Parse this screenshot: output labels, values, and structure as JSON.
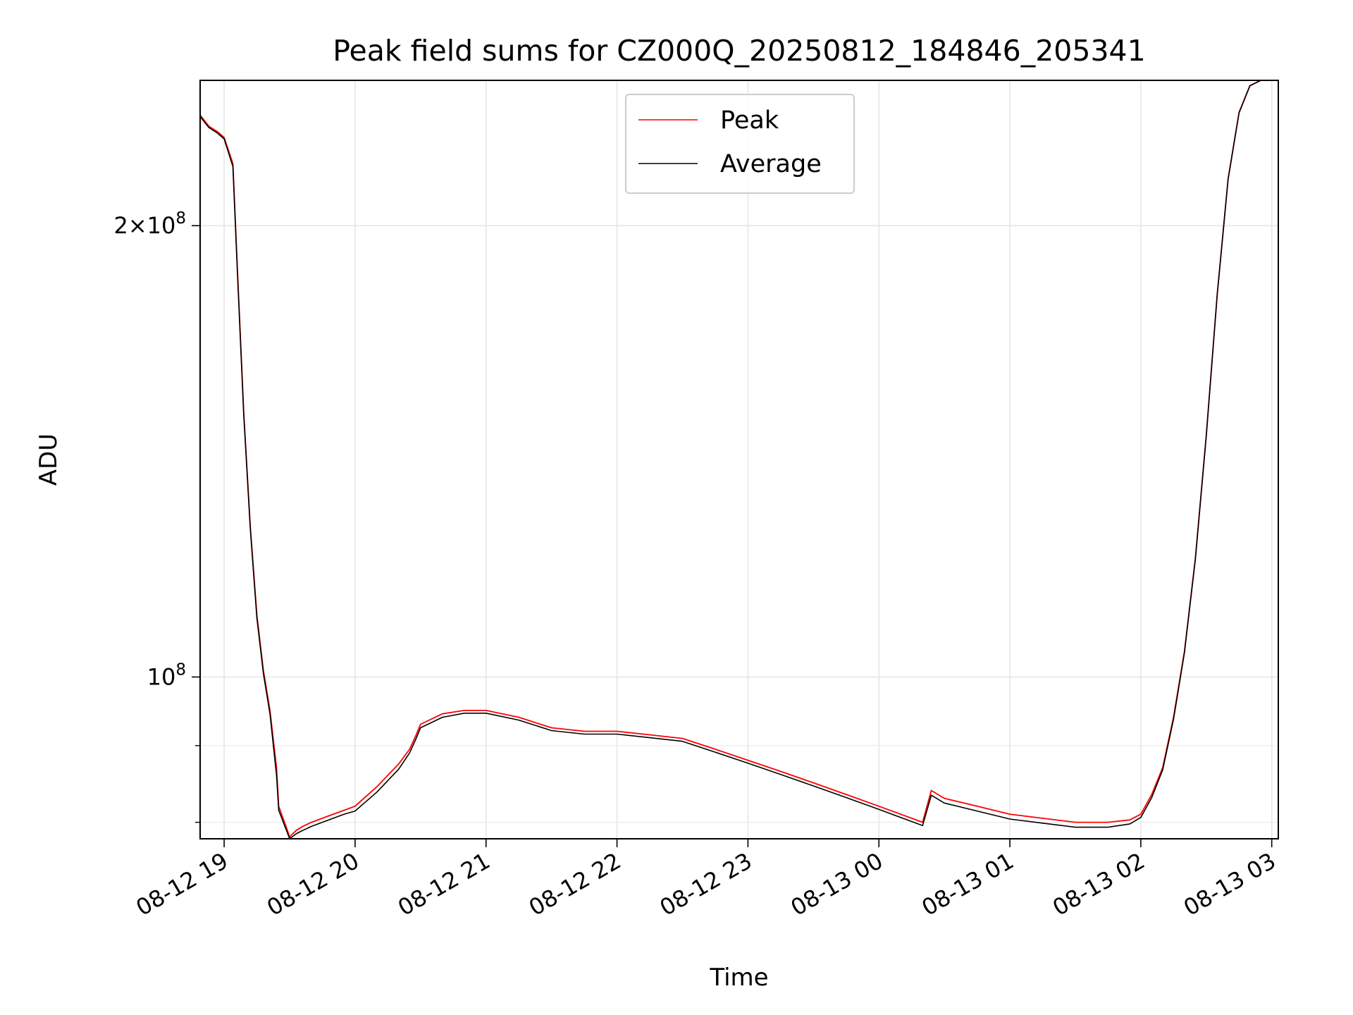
{
  "chart_data": {
    "type": "line",
    "title": "Peak field sums for CZ000Q_20250812_184846_205341",
    "xlabel": "Time",
    "ylabel": "ADU",
    "yscale": "log",
    "xlim": [
      "2025-08-12 18:49",
      "2025-08-13 03:03"
    ],
    "ylim": [
      78000000,
      250000000
    ],
    "grid": true,
    "legend_position": "top-center",
    "x_ticks": [
      {
        "value": "2025-08-12 19:00",
        "label": "08-12 19"
      },
      {
        "value": "2025-08-12 20:00",
        "label": "08-12 20"
      },
      {
        "value": "2025-08-12 21:00",
        "label": "08-12 21"
      },
      {
        "value": "2025-08-12 22:00",
        "label": "08-12 22"
      },
      {
        "value": "2025-08-12 23:00",
        "label": "08-12 23"
      },
      {
        "value": "2025-08-13 00:00",
        "label": "08-13 00"
      },
      {
        "value": "2025-08-13 01:00",
        "label": "08-13 01"
      },
      {
        "value": "2025-08-13 02:00",
        "label": "08-13 02"
      },
      {
        "value": "2025-08-13 03:00",
        "label": "08-13 03"
      }
    ],
    "y_major_ticks": [
      {
        "value": 100000000,
        "base": "10",
        "exp": "8"
      },
      {
        "value": 200000000,
        "coef": "2",
        "base": "10",
        "exp": "8"
      }
    ],
    "y_minor_ticks": [
      80000000,
      90000000
    ],
    "x": [
      "2025-08-12 18:49",
      "2025-08-12 18:53",
      "2025-08-12 18:57",
      "2025-08-12 19:00",
      "2025-08-12 19:04",
      "2025-08-12 19:06",
      "2025-08-12 19:09",
      "2025-08-12 19:12",
      "2025-08-12 19:15",
      "2025-08-12 19:18",
      "2025-08-12 19:21",
      "2025-08-12 19:24",
      "2025-08-12 19:25",
      "2025-08-12 19:29",
      "2025-08-12 19:30",
      "2025-08-12 19:31",
      "2025-08-12 19:33",
      "2025-08-12 19:36",
      "2025-08-12 19:40",
      "2025-08-12 19:45",
      "2025-08-12 19:50",
      "2025-08-12 19:55",
      "2025-08-12 20:00",
      "2025-08-12 20:10",
      "2025-08-12 20:20",
      "2025-08-12 20:25",
      "2025-08-12 20:28",
      "2025-08-12 20:30",
      "2025-08-12 20:40",
      "2025-08-12 20:50",
      "2025-08-12 21:00",
      "2025-08-12 21:15",
      "2025-08-12 21:30",
      "2025-08-12 21:45",
      "2025-08-12 22:00",
      "2025-08-12 22:15",
      "2025-08-12 22:30",
      "2025-08-12 22:45",
      "2025-08-12 23:00",
      "2025-08-12 23:15",
      "2025-08-12 23:30",
      "2025-08-12 23:45",
      "2025-08-13 00:00",
      "2025-08-13 00:15",
      "2025-08-13 00:20",
      "2025-08-13 00:24",
      "2025-08-13 00:30",
      "2025-08-13 00:45",
      "2025-08-13 01:00",
      "2025-08-13 01:15",
      "2025-08-13 01:30",
      "2025-08-13 01:45",
      "2025-08-13 01:55",
      "2025-08-13 02:00",
      "2025-08-13 02:05",
      "2025-08-13 02:10",
      "2025-08-13 02:15",
      "2025-08-13 02:20",
      "2025-08-13 02:25",
      "2025-08-13 02:30",
      "2025-08-13 02:35",
      "2025-08-13 02:40",
      "2025-08-13 02:45",
      "2025-08-13 02:50",
      "2025-08-13 02:55",
      "2025-08-13 03:00"
    ],
    "series": [
      {
        "name": "Peak",
        "color": "#ff0000",
        "values": [
          237000000,
          233000000,
          231000000,
          229000000,
          220000000,
          188000000,
          150000000,
          126000000,
          110000000,
          101000000,
          95000000,
          87000000,
          82000000,
          79000000,
          78200000,
          78500000,
          79000000,
          79500000,
          80000000,
          80500000,
          81000000,
          81500000,
          82000000,
          84500000,
          87500000,
          89500000,
          91500000,
          93000000,
          94500000,
          95000000,
          95000000,
          94000000,
          92500000,
          92000000,
          92000000,
          91500000,
          91000000,
          89500000,
          88000000,
          86500000,
          85000000,
          83500000,
          82000000,
          80500000,
          80000000,
          84000000,
          83000000,
          82000000,
          81000000,
          80500000,
          80000000,
          80000000,
          80300000,
          81000000,
          83500000,
          87000000,
          94000000,
          104000000,
          120000000,
          145000000,
          180000000,
          215000000,
          238000000,
          248000000,
          250000000,
          250000000
        ]
      },
      {
        "name": "Average",
        "color": "#000000",
        "values": [
          236500000,
          232500000,
          230500000,
          228500000,
          219000000,
          187000000,
          149500000,
          125500000,
          109500000,
          100500000,
          94500000,
          86000000,
          81500000,
          78700000,
          78000000,
          78200000,
          78600000,
          79000000,
          79500000,
          80000000,
          80500000,
          81000000,
          81400000,
          83800000,
          86800000,
          89000000,
          91000000,
          92500000,
          94000000,
          94600000,
          94600000,
          93600000,
          92100000,
          91600000,
          91600000,
          91100000,
          90600000,
          89100000,
          87600000,
          86100000,
          84600000,
          83100000,
          81600000,
          80100000,
          79600000,
          83400000,
          82400000,
          81400000,
          80400000,
          79900000,
          79400000,
          79400000,
          79800000,
          80600000,
          83100000,
          86700000,
          93700000,
          103800000,
          119800000,
          144800000,
          179800000,
          214800000,
          237800000,
          247900000,
          250000000,
          250000000
        ]
      }
    ]
  }
}
